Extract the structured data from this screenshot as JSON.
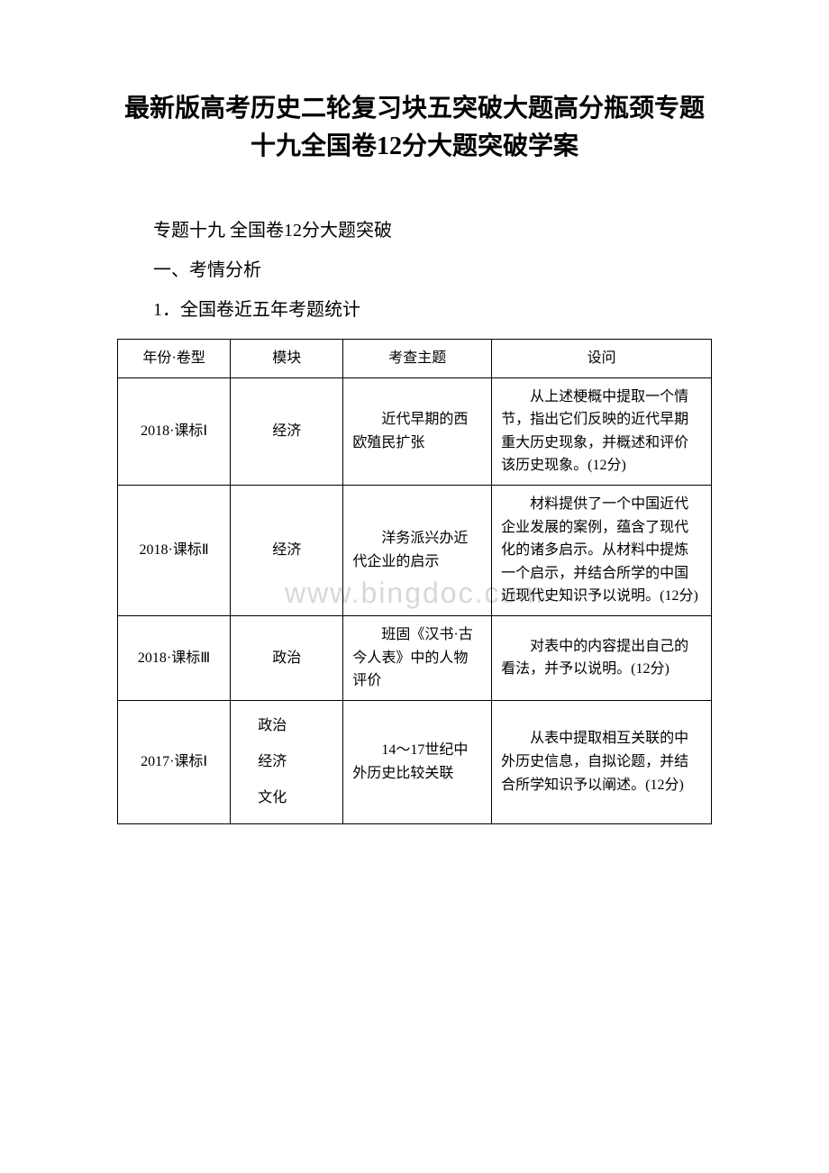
{
  "title": "最新版高考历史二轮复习块五突破大题高分瓶颈专题十九全国卷12分大题突破学案",
  "section1": "专题十九 全国卷12分大题突破",
  "section2": "一、考情分析",
  "section3": "1．全国卷近五年考题统计",
  "watermark": "www.bingdoc.com",
  "table": {
    "headers": {
      "year": "年份·卷型",
      "module": "模块",
      "topic": "考查主题",
      "question": "设问"
    },
    "rows": [
      {
        "year": "2018·课标Ⅰ",
        "module": "经济",
        "topic": "近代早期的西欧殖民扩张",
        "question": "从上述梗概中提取一个情节，指出它们反映的近代早期重大历史现象，并概述和评价该历史现象。(12分)"
      },
      {
        "year": "2018·课标Ⅱ",
        "module": "经济",
        "topic": "洋务派兴办近代企业的启示",
        "question": "材料提供了一个中国近代企业发展的案例，蕴含了现代化的诸多启示。从材料中提炼一个启示，并结合所学的中国近现代史知识予以说明。(12分)"
      },
      {
        "year": "2018·课标Ⅲ",
        "module": "政治",
        "topic": "班固《汉书·古今人表》中的人物评价",
        "question": "对表中的内容提出自己的看法，并予以说明。(12分)"
      },
      {
        "year": "2017·课标Ⅰ",
        "module": "政治\n经济\n文化",
        "topic": "14～17世纪中外历史比较关联",
        "question": "从表中提取相互关联的中外历史信息，自拟论题，并结合所学知识予以阐述。(12分)"
      }
    ]
  }
}
